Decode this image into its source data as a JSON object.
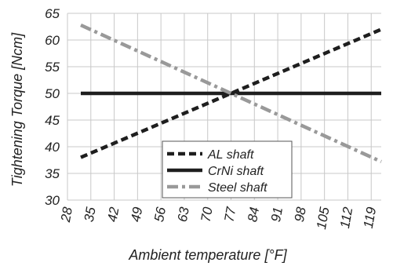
{
  "chart_data": {
    "type": "line",
    "title": "",
    "xlabel": "Ambient temperature [°F]",
    "ylabel": "Tightening Torque [Ncm]",
    "xlim": [
      28,
      122
    ],
    "ylim": [
      30,
      65
    ],
    "x_ticks": [
      28,
      35,
      42,
      49,
      56,
      63,
      70,
      77,
      84,
      91,
      98,
      105,
      112,
      119
    ],
    "y_ticks": [
      30,
      35,
      40,
      45,
      50,
      55,
      60,
      65
    ],
    "grid": true,
    "legend": "bottom-center",
    "series": [
      {
        "name": "AL shaft",
        "x": [
          32,
          122
        ],
        "y": [
          38.0,
          62.0
        ],
        "color": "#1e1e1e",
        "style": "dashed"
      },
      {
        "name": "CrNi shaft",
        "x": [
          32,
          122
        ],
        "y": [
          50.0,
          50.0
        ],
        "color": "#1e1e1e",
        "style": "solid"
      },
      {
        "name": "Steel shaft",
        "x": [
          32,
          122
        ],
        "y": [
          62.8,
          37.2
        ],
        "color": "#999999",
        "style": "dashdot"
      }
    ]
  }
}
